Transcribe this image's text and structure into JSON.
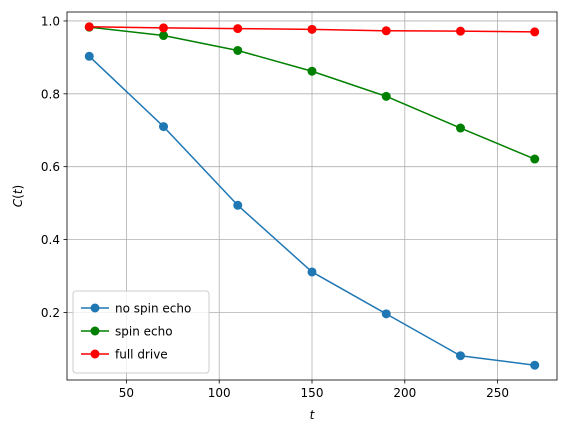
{
  "chart_data": {
    "type": "line",
    "x": [
      30,
      70,
      110,
      150,
      190,
      230,
      270
    ],
    "series": [
      {
        "name": "no spin echo",
        "color": "#1f77b4",
        "values": [
          0.903,
          0.71,
          0.494,
          0.311,
          0.196,
          0.081,
          0.055
        ]
      },
      {
        "name": "spin echo",
        "color": "#008000",
        "values": [
          0.983,
          0.96,
          0.919,
          0.862,
          0.793,
          0.706,
          0.621
        ]
      },
      {
        "name": "full drive",
        "color": "#ff0000",
        "values": [
          0.984,
          0.981,
          0.979,
          0.977,
          0.973,
          0.972,
          0.97
        ]
      }
    ],
    "xlabel": "t",
    "ylabel_prefix": "C",
    "ylabel_arg": "t",
    "xlim": [
      18,
      282
    ],
    "ylim": [
      0.0144,
      1.0246
    ],
    "xticks": [
      {
        "value": 50,
        "label": "50"
      },
      {
        "value": 100,
        "label": "100"
      },
      {
        "value": 150,
        "label": "150"
      },
      {
        "value": 200,
        "label": "200"
      },
      {
        "value": 250,
        "label": "250"
      }
    ],
    "yticks": [
      {
        "value": 0.2,
        "label": "0.2"
      },
      {
        "value": 0.4,
        "label": "0.4"
      },
      {
        "value": 0.6,
        "label": "0.6"
      },
      {
        "value": 0.8,
        "label": "0.8"
      },
      {
        "value": 1.0,
        "label": "1.0"
      }
    ],
    "grid": true,
    "legend_position": "lower-left",
    "marker": "circle"
  }
}
